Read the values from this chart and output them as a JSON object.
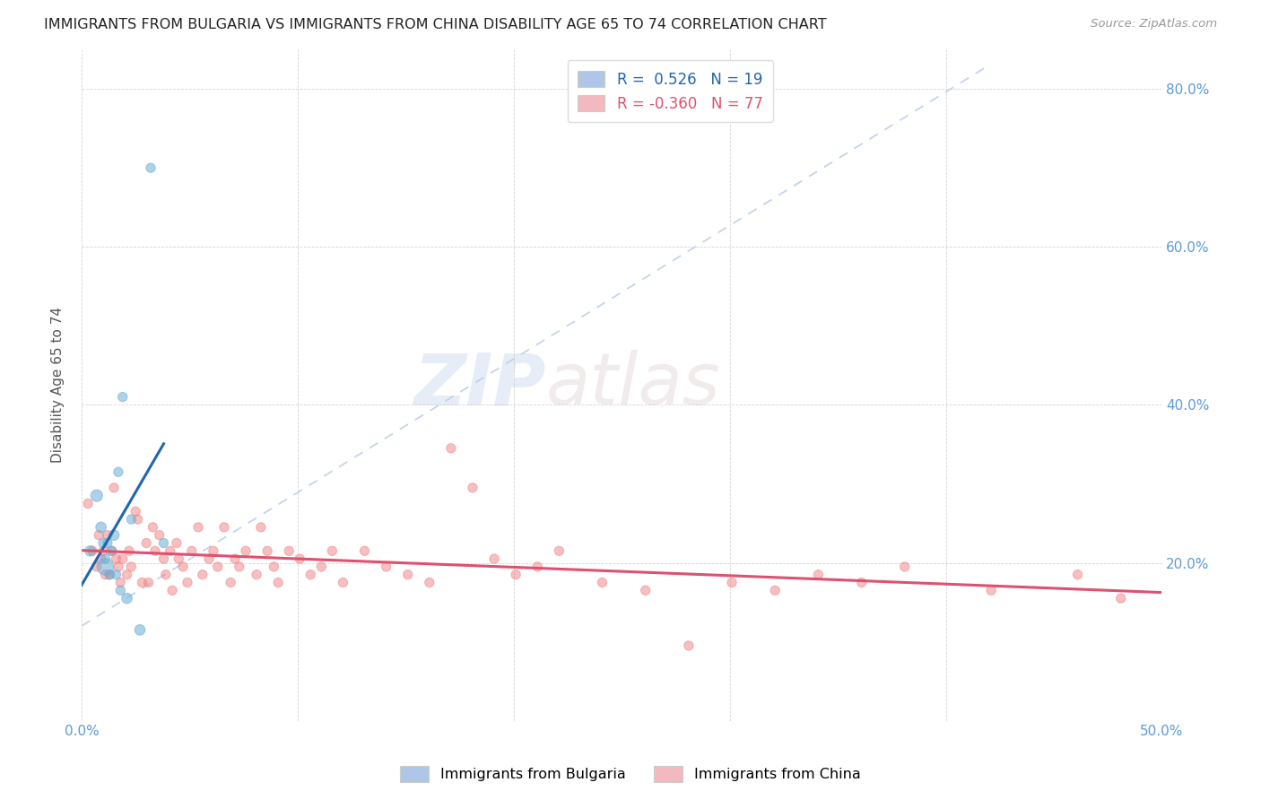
{
  "title": "IMMIGRANTS FROM BULGARIA VS IMMIGRANTS FROM CHINA DISABILITY AGE 65 TO 74 CORRELATION CHART",
  "source": "Source: ZipAtlas.com",
  "ylabel": "Disability Age 65 to 74",
  "xlim": [
    0.0,
    0.5
  ],
  "ylim": [
    0.0,
    0.85
  ],
  "xticks": [
    0.0,
    0.1,
    0.2,
    0.3,
    0.4,
    0.5
  ],
  "yticks": [
    0.0,
    0.2,
    0.4,
    0.6,
    0.8
  ],
  "xticklabels": [
    "0.0%",
    "",
    "",
    "",
    "",
    "50.0%"
  ],
  "yticklabels_right": [
    "",
    "20.0%",
    "40.0%",
    "60.0%",
    "80.0%"
  ],
  "legend1_label": "R =  0.526   N = 19",
  "legend2_label": "R = -0.360   N = 77",
  "legend1_color": "#aec6e8",
  "legend2_color": "#f4b8c1",
  "bulgaria_color": "#6baed6",
  "china_color": "#f08080",
  "trendline_bulgaria_color": "#2166ac",
  "trendline_china_color": "#e05070",
  "trendline_dashed_color": "#c0cfe8",
  "watermark_zip": "ZIP",
  "watermark_atlas": "atlas",
  "bulgaria_x": [
    0.004,
    0.007,
    0.009,
    0.01,
    0.011,
    0.011,
    0.012,
    0.013,
    0.014,
    0.015,
    0.016,
    0.017,
    0.018,
    0.019,
    0.021,
    0.023,
    0.027,
    0.032,
    0.038
  ],
  "bulgaria_y": [
    0.215,
    0.285,
    0.245,
    0.225,
    0.205,
    0.195,
    0.225,
    0.185,
    0.215,
    0.235,
    0.185,
    0.315,
    0.165,
    0.41,
    0.155,
    0.255,
    0.115,
    0.7,
    0.225
  ],
  "bulgaria_sizes": [
    70,
    90,
    70,
    55,
    55,
    180,
    55,
    55,
    55,
    70,
    55,
    55,
    55,
    55,
    70,
    55,
    70,
    55,
    55
  ],
  "china_x": [
    0.003,
    0.005,
    0.007,
    0.008,
    0.009,
    0.01,
    0.011,
    0.012,
    0.013,
    0.014,
    0.015,
    0.016,
    0.017,
    0.018,
    0.019,
    0.021,
    0.022,
    0.023,
    0.025,
    0.026,
    0.028,
    0.03,
    0.031,
    0.033,
    0.034,
    0.036,
    0.038,
    0.039,
    0.041,
    0.042,
    0.044,
    0.045,
    0.047,
    0.049,
    0.051,
    0.054,
    0.056,
    0.059,
    0.061,
    0.063,
    0.066,
    0.069,
    0.071,
    0.073,
    0.076,
    0.081,
    0.083,
    0.086,
    0.089,
    0.091,
    0.096,
    0.101,
    0.106,
    0.111,
    0.116,
    0.121,
    0.131,
    0.141,
    0.151,
    0.161,
    0.171,
    0.181,
    0.191,
    0.201,
    0.211,
    0.221,
    0.241,
    0.261,
    0.281,
    0.301,
    0.321,
    0.341,
    0.361,
    0.381,
    0.421,
    0.461,
    0.481
  ],
  "china_y": [
    0.275,
    0.215,
    0.195,
    0.235,
    0.205,
    0.215,
    0.185,
    0.235,
    0.185,
    0.215,
    0.295,
    0.205,
    0.195,
    0.175,
    0.205,
    0.185,
    0.215,
    0.195,
    0.265,
    0.255,
    0.175,
    0.225,
    0.175,
    0.245,
    0.215,
    0.235,
    0.205,
    0.185,
    0.215,
    0.165,
    0.225,
    0.205,
    0.195,
    0.175,
    0.215,
    0.245,
    0.185,
    0.205,
    0.215,
    0.195,
    0.245,
    0.175,
    0.205,
    0.195,
    0.215,
    0.185,
    0.245,
    0.215,
    0.195,
    0.175,
    0.215,
    0.205,
    0.185,
    0.195,
    0.215,
    0.175,
    0.215,
    0.195,
    0.185,
    0.175,
    0.345,
    0.295,
    0.205,
    0.185,
    0.195,
    0.215,
    0.175,
    0.165,
    0.095,
    0.175,
    0.165,
    0.185,
    0.175,
    0.195,
    0.165,
    0.185,
    0.155
  ],
  "china_sizes": [
    55,
    55,
    55,
    55,
    55,
    55,
    55,
    55,
    55,
    55,
    55,
    55,
    55,
    55,
    55,
    55,
    55,
    55,
    55,
    55,
    55,
    55,
    55,
    55,
    55,
    55,
    55,
    55,
    55,
    55,
    55,
    55,
    55,
    55,
    55,
    55,
    55,
    55,
    55,
    55,
    55,
    55,
    55,
    55,
    55,
    55,
    55,
    55,
    55,
    55,
    55,
    55,
    55,
    55,
    55,
    55,
    55,
    55,
    55,
    55,
    55,
    55,
    55,
    55,
    55,
    55,
    55,
    55,
    55,
    55,
    55,
    55,
    55,
    55,
    55,
    55,
    55
  ]
}
